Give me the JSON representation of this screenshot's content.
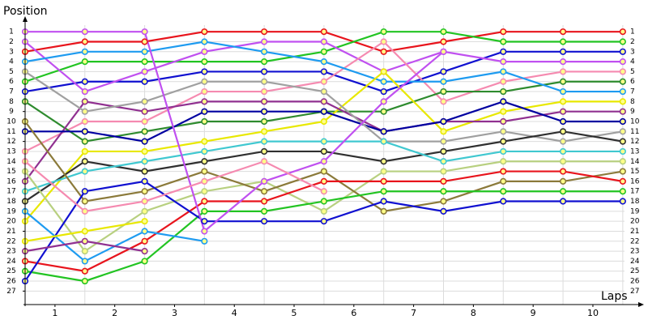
{
  "chart_data": {
    "type": "line",
    "y_label": "Position",
    "x_label": "Laps",
    "x": [
      0,
      1,
      2,
      3,
      4,
      5,
      6,
      7,
      8,
      9,
      10
    ],
    "xlim": [
      0,
      10.3
    ],
    "xticks": [
      {
        "value": 0.5,
        "label": "1"
      },
      {
        "value": 1.5,
        "label": "2"
      },
      {
        "value": 2.5,
        "label": "3"
      },
      {
        "value": 3.5,
        "label": "4"
      },
      {
        "value": 4.5,
        "label": "5"
      },
      {
        "value": 5.5,
        "label": "6"
      },
      {
        "value": 6.5,
        "label": "7"
      },
      {
        "value": 7.5,
        "label": "8"
      },
      {
        "value": 8.5,
        "label": "9"
      },
      {
        "value": 9.5,
        "label": "10"
      }
    ],
    "ylim": [
      28.35,
      -0.15
    ],
    "yticks": [
      1,
      2,
      3,
      4,
      5,
      6,
      7,
      8,
      9,
      10,
      11,
      12,
      13,
      14,
      15,
      16,
      17,
      18,
      19,
      20,
      21,
      22,
      23,
      24,
      25,
      26,
      27
    ],
    "grid": true,
    "marker_fill": "#ffff88",
    "series": [
      {
        "color": "#e8141c",
        "values": [
          3,
          2,
          2,
          1,
          1,
          1,
          3,
          2,
          1,
          1,
          1
        ]
      },
      {
        "color": "#22c422",
        "values": [
          6,
          4,
          4,
          4,
          4,
          3,
          1,
          1,
          2,
          2,
          2
        ]
      },
      {
        "color": "#1010d0",
        "values": [
          7,
          6,
          6,
          5,
          5,
          5,
          7,
          5,
          3,
          3,
          3
        ]
      },
      {
        "color": "#c050f0",
        "values": [
          2,
          7,
          5,
          3,
          2,
          2,
          5,
          3,
          4,
          4,
          4
        ]
      },
      {
        "color": "#f58ab0",
        "values": [
          13,
          10,
          10,
          7,
          7,
          6,
          2,
          8,
          6,
          5,
          5
        ]
      },
      {
        "color": "#2e8b2e",
        "values": [
          8,
          12,
          11,
          10,
          10,
          9,
          9,
          7,
          7,
          6,
          6
        ]
      },
      {
        "color": "#1e9bf0",
        "values": [
          4,
          3,
          3,
          2,
          3,
          4,
          6,
          6,
          5,
          7,
          7
        ]
      },
      {
        "color": "#e8e800",
        "values": [
          20,
          13,
          13,
          12,
          11,
          10,
          5,
          11,
          9,
          8,
          8
        ]
      },
      {
        "color": "#903090",
        "values": [
          16,
          8,
          9,
          8,
          8,
          8,
          11,
          10,
          10,
          9,
          9
        ]
      },
      {
        "color": "#0000a0",
        "values": [
          11,
          11,
          12,
          9,
          9,
          9,
          11,
          10,
          8,
          10,
          10
        ]
      },
      {
        "color": "#a0a0a0",
        "values": [
          5,
          9,
          8,
          6,
          6,
          7,
          12,
          12,
          11,
          12,
          11
        ]
      },
      {
        "color": "#303030",
        "values": [
          18,
          14,
          15,
          14,
          13,
          13,
          14,
          13,
          12,
          11,
          12
        ]
      },
      {
        "color": "#40c8d0",
        "values": [
          17,
          15,
          14,
          13,
          12,
          12,
          12,
          14,
          13,
          13,
          13
        ]
      },
      {
        "color": "#b8d080",
        "values": [
          15,
          23,
          19,
          17,
          16,
          19,
          15,
          15,
          14,
          14,
          14
        ]
      },
      {
        "color": "#8b7a3a",
        "values": [
          10,
          18,
          17,
          15,
          17,
          15,
          19,
          18,
          16,
          16,
          15
        ]
      },
      {
        "color": "#e8141c",
        "values": [
          24,
          25,
          22,
          18,
          18,
          16,
          16,
          16,
          15,
          15,
          16
        ]
      },
      {
        "color": "#22c422",
        "values": [
          25,
          26,
          24,
          19,
          19,
          18,
          17,
          17,
          17,
          17,
          17
        ]
      },
      {
        "color": "#1010d0",
        "values": [
          26,
          17,
          16,
          20,
          20,
          20,
          18,
          19,
          18,
          18,
          18
        ]
      },
      {
        "color": "#c050f0",
        "values": [
          1,
          1,
          1,
          21,
          16,
          14,
          8,
          3,
          null,
          null,
          null
        ]
      },
      {
        "color": "#f58ab0",
        "values": [
          14,
          19,
          18,
          16,
          14,
          17,
          null,
          null,
          null,
          null,
          null
        ]
      },
      {
        "color": "#1e9bf0",
        "values": [
          19,
          24,
          21,
          22,
          null,
          null,
          null,
          null,
          null,
          null,
          null
        ]
      },
      {
        "color": "#e8e800",
        "values": [
          22,
          21,
          20,
          null,
          null,
          null,
          null,
          null,
          null,
          null,
          null
        ]
      },
      {
        "color": "#903090",
        "values": [
          23,
          22,
          23,
          null,
          null,
          null,
          null,
          null,
          null,
          null,
          null
        ]
      }
    ]
  }
}
